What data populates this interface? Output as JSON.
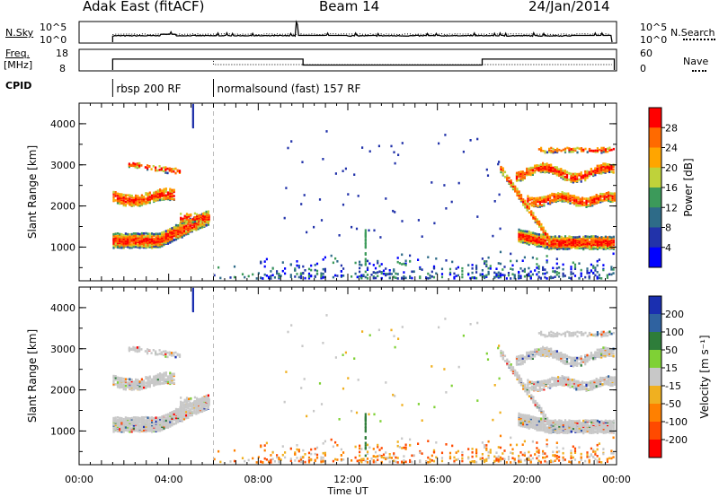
{
  "header": {
    "station": "Adak East (fitACF)",
    "beam": "Beam 14",
    "date": "24/Jan/2014"
  },
  "strip_labels": {
    "nsky": "N.Sky",
    "nsky_ticks": [
      "10^5",
      "10^0"
    ],
    "nsearch": "N.Search",
    "freq_lines": [
      "Freq.",
      "[MHz]"
    ],
    "freq_ticks": [
      "18",
      "8"
    ],
    "nave_ticks": [
      "60",
      "0"
    ],
    "nave": "Nave",
    "cpid": "CPID"
  },
  "cpid_modes": [
    {
      "label": "rbsp 200 RF",
      "start_hour": 1.5
    },
    {
      "label": "normalsound (fast) 157 RF",
      "start_hour": 6.0
    }
  ],
  "chart_data": [
    {
      "type": "line",
      "name": "noise-strip",
      "x": [
        1.5,
        3.5,
        3.6,
        4.3,
        9.6,
        9.7,
        9.8,
        12.0,
        16.5,
        19.0,
        22.0,
        23.8
      ],
      "series": [
        {
          "name": "N.Sky",
          "values": [
            1.5,
            1.6,
            2.0,
            1.6,
            1.5,
            4.5,
            1.7,
            1.5,
            1.6,
            1.5,
            1.7,
            1.6
          ]
        }
      ]
    },
    {
      "type": "line",
      "name": "frequency-nave-strip",
      "x": [
        1.5,
        6.0,
        10.0,
        18.0,
        23.9
      ],
      "series": [
        {
          "name": "Freq.",
          "values": [
            13.5,
            13.5,
            10.5,
            10.5,
            13.5
          ]
        }
      ]
    },
    {
      "type": "heatmap",
      "name": "power-panel",
      "xlabel": "",
      "ylabel": "Slant Range [km]",
      "xlim": [
        0,
        24
      ],
      "ylim": [
        180,
        4500
      ],
      "yticks": [
        1000,
        2000,
        3000,
        4000
      ],
      "colorbar": {
        "label": "Power [dB]",
        "ticks": [
          "28",
          "24",
          "20",
          "16",
          "12",
          "8",
          "4"
        ],
        "colors": [
          "#ff0000",
          "#ff6a00",
          "#ffa500",
          "#bfd23a",
          "#3c9a5a",
          "#2e6b88",
          "#2233aa",
          "#0000ff"
        ]
      }
    },
    {
      "type": "heatmap",
      "name": "velocity-panel",
      "xlabel": "Time UT",
      "ylabel": "Slant Range [km]",
      "xlim": [
        0,
        24
      ],
      "ylim": [
        180,
        4500
      ],
      "yticks": [
        1000,
        2000,
        3000,
        4000
      ],
      "xticks": [
        "00:00",
        "04:00",
        "08:00",
        "12:00",
        "16:00",
        "20:00",
        "00:00"
      ],
      "colorbar": {
        "label": "Velocity [m s⁻¹]",
        "ticks": [
          "200",
          "100",
          "50",
          "15",
          "-15",
          "-50",
          "-100",
          "-200"
        ],
        "colors": [
          "#1a2fb0",
          "#2f62a0",
          "#2e7d3a",
          "#7fd135",
          "#c8c8c8",
          "#f0b020",
          "#ff8000",
          "#ff4a00",
          "#ff0000"
        ]
      }
    }
  ]
}
